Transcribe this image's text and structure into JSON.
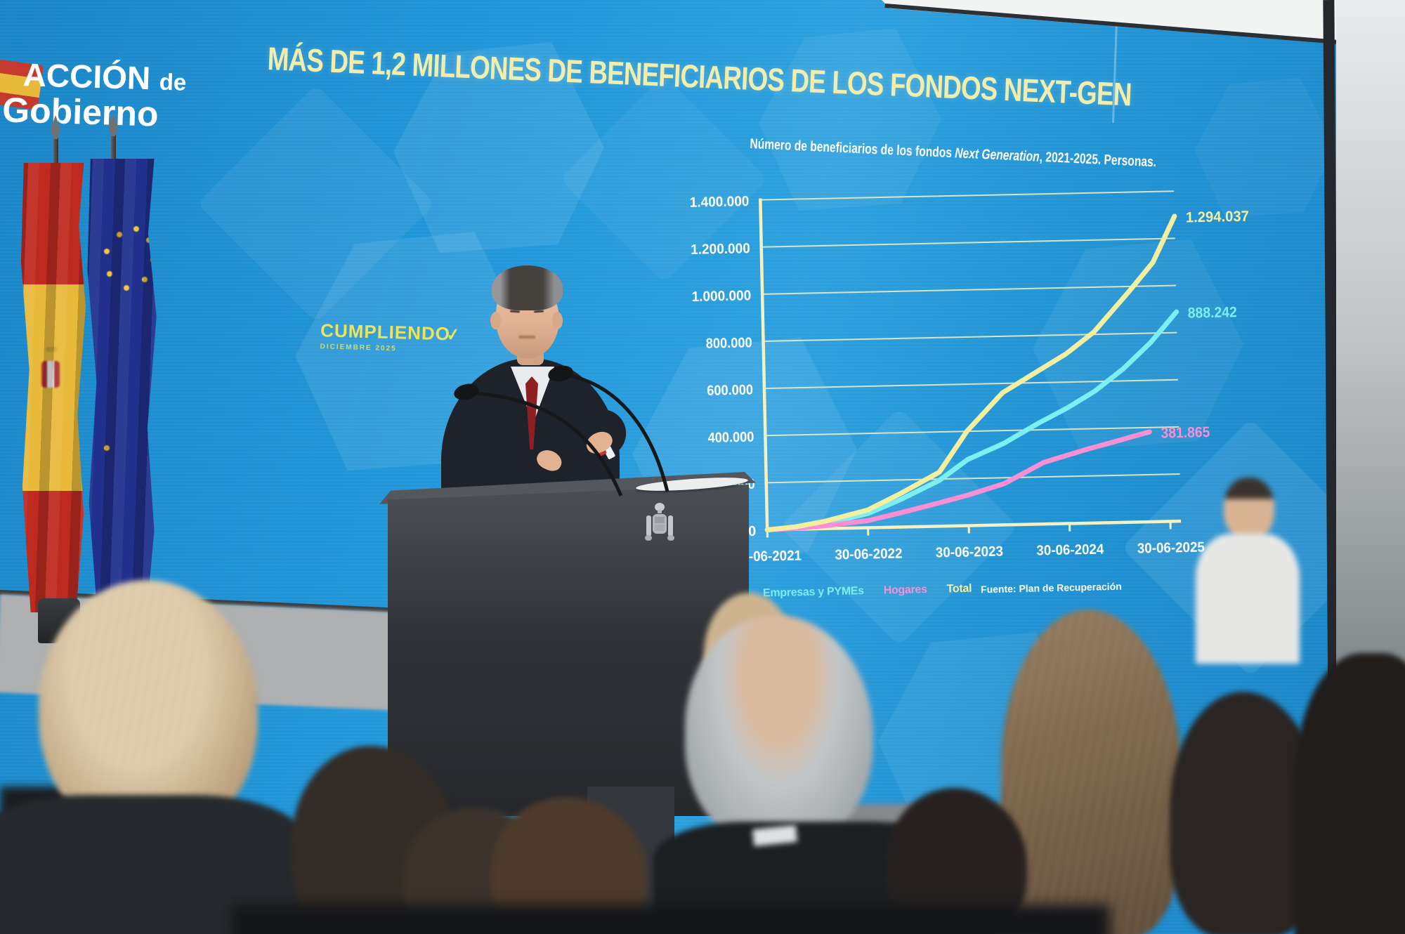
{
  "branding": {
    "logo_line1_main": "ACCIÓN",
    "logo_line1_small": "de",
    "logo_line2": "Gobierno",
    "program": "CUMPLIENDO",
    "program_check": "✓",
    "program_sub": "DICIEMBRE 2025"
  },
  "slide": {
    "title": "MÁS DE 1,2 MILLONES DE BENEFICIARIOS DE LOS FONDOS NEXT-GEN",
    "subtitle_prefix": "Número de beneficiarios de los fondos ",
    "subtitle_italic": "Next Generation",
    "subtitle_suffix": ", 2021-2025. Personas.",
    "source": "Fuente: Plan de Recuperación"
  },
  "chart_data": {
    "type": "line",
    "title": "Número de beneficiarios de los fondos Next Generation, 2021-2025. Personas.",
    "x_ticks": [
      "30-06-2021",
      "30-06-2022",
      "30-06-2023",
      "30-06-2024",
      "30-06-2025"
    ],
    "y_ticks": [
      "1.400.000",
      "1.200.000",
      "1.000.000",
      "800.000",
      "600.000",
      "400.000",
      "200.000",
      "0"
    ],
    "ylim": [
      0,
      1400000
    ],
    "grid": true,
    "legend_position": "bottom",
    "axis_color": "#f5f1c2",
    "label_color": "#ffffff",
    "series": [
      {
        "name": "Empresas y PYMEs",
        "color": "#7deef2",
        "end_label": "888.242",
        "final_value": 888242,
        "points": [
          [
            0,
            0
          ],
          [
            0.07,
            6000
          ],
          [
            0.14,
            20000
          ],
          [
            0.25,
            60000
          ],
          [
            0.33,
            115000
          ],
          [
            0.43,
            195000
          ],
          [
            0.5,
            280000
          ],
          [
            0.59,
            345000
          ],
          [
            0.68,
            430000
          ],
          [
            0.75,
            490000
          ],
          [
            0.82,
            560000
          ],
          [
            0.89,
            650000
          ],
          [
            0.96,
            760000
          ],
          [
            1.026,
            888242
          ]
        ]
      },
      {
        "name": "Hogares",
        "color": "#fb8fd4",
        "end_label": "381.865",
        "final_value": 381865,
        "points": [
          [
            0,
            0
          ],
          [
            0.07,
            4000
          ],
          [
            0.14,
            12000
          ],
          [
            0.25,
            30000
          ],
          [
            0.33,
            60000
          ],
          [
            0.43,
            100000
          ],
          [
            0.5,
            130000
          ],
          [
            0.59,
            175000
          ],
          [
            0.69,
            262000
          ],
          [
            0.79,
            310000
          ],
          [
            0.87,
            345000
          ],
          [
            0.953,
            381865
          ]
        ]
      },
      {
        "name": "Total",
        "color": "#f2efa0",
        "end_label": "1.294.037",
        "final_value": 1294037,
        "points": [
          [
            0,
            0
          ],
          [
            0.07,
            10000
          ],
          [
            0.14,
            30000
          ],
          [
            0.25,
            75000
          ],
          [
            0.33,
            140000
          ],
          [
            0.43,
            230000
          ],
          [
            0.5,
            400000
          ],
          [
            0.59,
            560000
          ],
          [
            0.68,
            650000
          ],
          [
            0.75,
            720000
          ],
          [
            0.82,
            810000
          ],
          [
            0.91,
            980000
          ],
          [
            0.97,
            1100000
          ],
          [
            1.026,
            1294037
          ]
        ]
      }
    ]
  }
}
